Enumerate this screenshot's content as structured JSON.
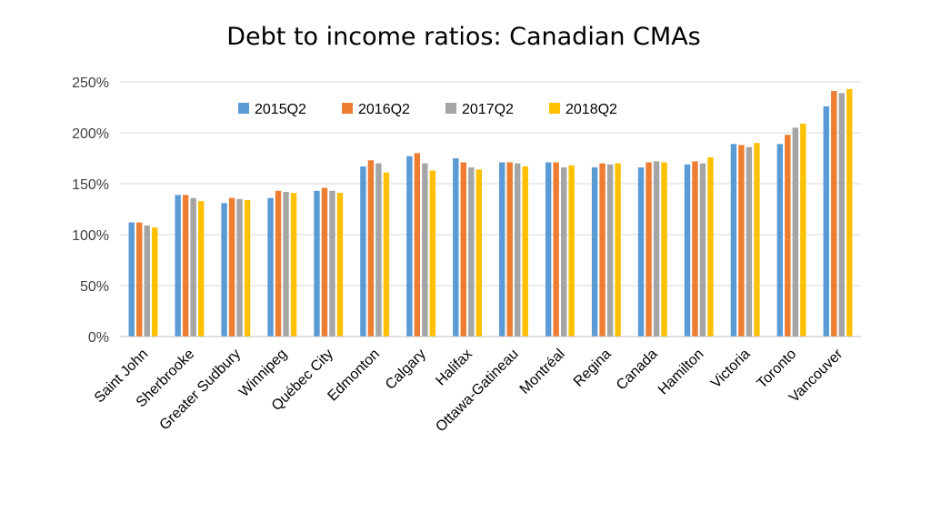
{
  "chart_data": {
    "type": "bar",
    "title": "Debt to income ratios: Canadian CMAs",
    "xlabel": "",
    "ylabel": "",
    "ylim": [
      0,
      250
    ],
    "yticks": [
      "0%",
      "50%",
      "100%",
      "150%",
      "200%",
      "250%"
    ],
    "grid": true,
    "legend_position": "top",
    "categories": [
      "Saint John",
      "Sherbrooke",
      "Greater Sudbury",
      "Winnipeg",
      "Québec City",
      "Edmonton",
      "Calgary",
      "Halifax",
      "Ottawa-Gatineau",
      "Montréal",
      "Regina",
      "Canada",
      "Hamilton",
      "Victoria",
      "Toronto",
      "Vancouver"
    ],
    "series": [
      {
        "name": "2015Q2",
        "color": "#5b9bd5",
        "values": [
          112,
          139,
          131,
          136,
          143,
          167,
          177,
          175,
          171,
          171,
          166,
          166,
          169,
          189,
          189,
          226
        ]
      },
      {
        "name": "2016Q2",
        "color": "#ed7d31",
        "values": [
          112,
          139,
          136,
          143,
          146,
          173,
          180,
          171,
          171,
          171,
          170,
          171,
          172,
          188,
          198,
          241
        ]
      },
      {
        "name": "2017Q2",
        "color": "#a5a5a5",
        "values": [
          109,
          136,
          135,
          142,
          143,
          170,
          170,
          166,
          170,
          166,
          169,
          172,
          170,
          186,
          205,
          239
        ]
      },
      {
        "name": "2018Q2",
        "color": "#ffc000",
        "values": [
          107,
          133,
          134,
          141,
          141,
          161,
          163,
          164,
          167,
          168,
          170,
          171,
          176,
          190,
          209,
          243
        ]
      }
    ]
  }
}
